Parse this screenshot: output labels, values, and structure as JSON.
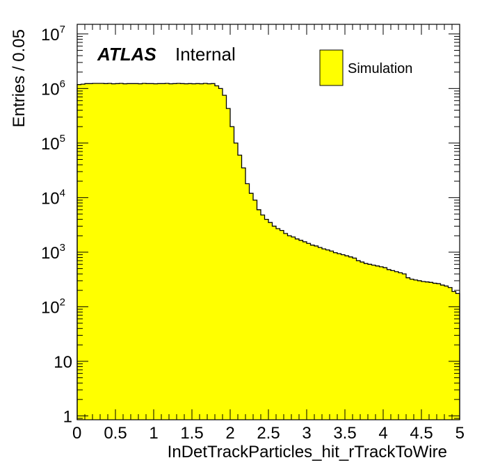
{
  "chart_data": {
    "type": "bar",
    "subtype": "histogram",
    "xlabel": "InDetTrackParticles_hit_rTrackToWire",
    "ylabel": "Entries / 0.05",
    "experiment_label": "ATLAS",
    "status_label": "Internal",
    "legend": [
      {
        "name": "Simulation",
        "color": "#ffff00",
        "edge": "#000000"
      }
    ],
    "legend_position": "top-right",
    "xlim": [
      0,
      5
    ],
    "ylim": [
      0.85,
      15000000
    ],
    "yscale": "log",
    "bin_width": 0.05,
    "fill_color": "#ffff00",
    "line_color": "#000000",
    "grid": false,
    "x_ticks": [
      "0",
      "0.5",
      "1",
      "1.5",
      "2",
      "2.5",
      "3",
      "3.5",
      "4",
      "4.5",
      "5"
    ],
    "y_ticks": [
      {
        "value": 1,
        "base": "1",
        "exp": ""
      },
      {
        "value": 10,
        "base": "10",
        "exp": ""
      },
      {
        "value": 100,
        "base": "10",
        "exp": "2"
      },
      {
        "value": 1000,
        "base": "10",
        "exp": "3"
      },
      {
        "value": 10000,
        "base": "10",
        "exp": "4"
      },
      {
        "value": 100000,
        "base": "10",
        "exp": "5"
      },
      {
        "value": 1000000,
        "base": "10",
        "exp": "6"
      },
      {
        "value": 10000000,
        "base": "10",
        "exp": "7"
      }
    ],
    "values": [
      1180000,
      1200000,
      1230000,
      1230000,
      1240000,
      1240000,
      1240000,
      1230000,
      1240000,
      1220000,
      1230000,
      1240000,
      1220000,
      1230000,
      1230000,
      1230000,
      1220000,
      1240000,
      1230000,
      1230000,
      1220000,
      1230000,
      1230000,
      1240000,
      1220000,
      1230000,
      1240000,
      1230000,
      1220000,
      1230000,
      1220000,
      1230000,
      1220000,
      1240000,
      1220000,
      1230000,
      1120000,
      1000000,
      750000,
      430000,
      200000,
      100000,
      60000,
      35000,
      18000,
      12000,
      9000,
      6000,
      4800,
      4000,
      3500,
      3000,
      2700,
      2500,
      2200,
      2000,
      1900,
      1750,
      1650,
      1550,
      1450,
      1350,
      1300,
      1220,
      1150,
      1100,
      1050,
      980,
      940,
      900,
      860,
      820,
      780,
      700,
      660,
      620,
      600,
      580,
      560,
      540,
      520,
      480,
      460,
      440,
      420,
      400,
      340,
      320,
      310,
      300,
      290,
      285,
      280,
      270,
      265,
      250,
      240,
      225,
      190,
      175
    ]
  }
}
